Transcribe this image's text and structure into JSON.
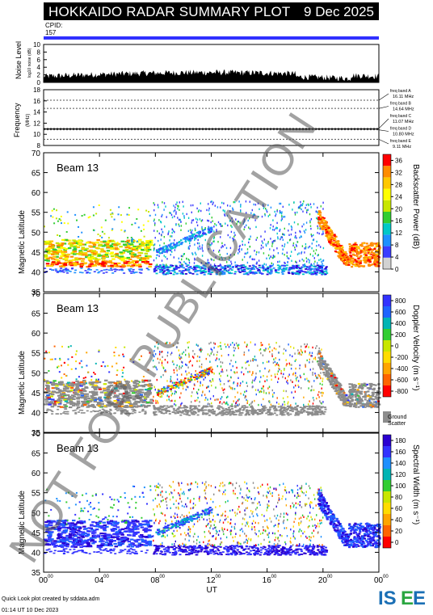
{
  "header": {
    "title": "HOKKAIDO RADAR SUMMARY PLOT",
    "date": "9 Dec 2025"
  },
  "cpid": {
    "label": "CPID:",
    "value": "157"
  },
  "colors": {
    "cpid_bar": "#3030ff",
    "noise_fill": "#000000",
    "background": "#ffffff"
  },
  "noise_panel": {
    "ylabel": "Noise Level",
    "sublabel": "log10 noise (dB)",
    "yticks": [
      "0",
      "2",
      "4",
      "6",
      "8",
      "10"
    ]
  },
  "frequency_panel": {
    "ylabel": "Frequency",
    "unit": "(MHz)",
    "yticks": [
      "8",
      "10",
      "12",
      "14",
      "16",
      "18"
    ],
    "bands": [
      {
        "name": "freq band A",
        "value": "16.11 MHz",
        "freq": 16.11
      },
      {
        "name": "freq band B",
        "value": "14.64 MHz",
        "freq": 14.64
      },
      {
        "name": "freq band C",
        "value": "11.07 MHz",
        "freq": 11.07
      },
      {
        "name": "freq band D",
        "value": "10.80 MHz",
        "freq": 10.8
      },
      {
        "name": "freq band E",
        "value": "9.11 MHz",
        "freq": 9.11
      }
    ]
  },
  "panels": [
    {
      "beam": "Beam 13",
      "ylabel": "Magnetic Latitude",
      "colorbar_label": "Backscatter Power (dB)",
      "colorbar_ticks": [
        "0",
        "4",
        "8",
        "12",
        "16",
        "20",
        "24",
        "28",
        "32",
        "36"
      ],
      "colors": [
        "#d2d2d2",
        "#3c3cff",
        "#1e90ff",
        "#00c8c8",
        "#32cd32",
        "#c8e600",
        "#ffff00",
        "#ffc800",
        "#ff8c00",
        "#ff0000"
      ]
    },
    {
      "beam": "Beam 13",
      "ylabel": "Magnetic Latitude",
      "colorbar_label": "Doppler Velocity (m s⁻¹)",
      "colorbar_ticks": [
        "800",
        "600",
        "400",
        "200",
        "0",
        "-200",
        "-400",
        "-600",
        "-800"
      ],
      "colors": [
        "#ff0000",
        "#ff6400",
        "#ffa500",
        "#ffdc00",
        "#c8e600",
        "#32cd32",
        "#00b4b4",
        "#1e64ff",
        "#3232ff"
      ],
      "ground_label": "Ground Scatter"
    },
    {
      "beam": "Beam 13",
      "ylabel": "Magnetic Latitude",
      "colorbar_label": "Spectral Width (m s⁻¹)",
      "colorbar_ticks": [
        "180",
        "160",
        "140",
        "120",
        "100",
        "80",
        "60",
        "40",
        "20",
        "0"
      ],
      "colors": [
        "#ff0000",
        "#ff6400",
        "#ffa500",
        "#ffdc00",
        "#c8e600",
        "#32cd32",
        "#00b4b4",
        "#1e90ff",
        "#3232ff",
        "#2a00d0"
      ]
    }
  ],
  "chart_data": {
    "type": "heatmap",
    "title": "HOKKAIDO RADAR SUMMARY PLOT",
    "xlabel": "UT",
    "x_ticks": [
      "00",
      "04",
      "08",
      "12",
      "16",
      "20",
      "00"
    ],
    "x_tick_suffix": "00",
    "xlim": [
      0,
      24
    ],
    "ylim": [
      35,
      70
    ],
    "y_ticks": [
      "35",
      "40",
      "45",
      "50",
      "55",
      "60",
      "65",
      "70"
    ],
    "noise_ylim": [
      0,
      10
    ],
    "freq_ylim": [
      8,
      18
    ],
    "scatter_regions": [
      {
        "t0": 0,
        "t1": 7.5,
        "lat0": 41.5,
        "lat1": 48,
        "kind": "ground_low"
      },
      {
        "t0": 7.8,
        "t1": 20,
        "lat0": 39.5,
        "lat1": 41.8,
        "kind": "ground_band"
      },
      {
        "t0": 7.8,
        "t1": 20,
        "lat0": 42,
        "lat1": 58,
        "kind": "ionospheric"
      },
      {
        "t0": 20,
        "t1": 24,
        "lat0": 42,
        "lat1": 56,
        "kind": "ground_diag"
      }
    ]
  },
  "footer": {
    "line1": "Quick Look plot created by sddata.adm",
    "line2": "01:14 UT 10 Dec 2023"
  },
  "logo": {
    "text": "ISEE"
  },
  "watermark": "NOT FOR PUBLICATION"
}
